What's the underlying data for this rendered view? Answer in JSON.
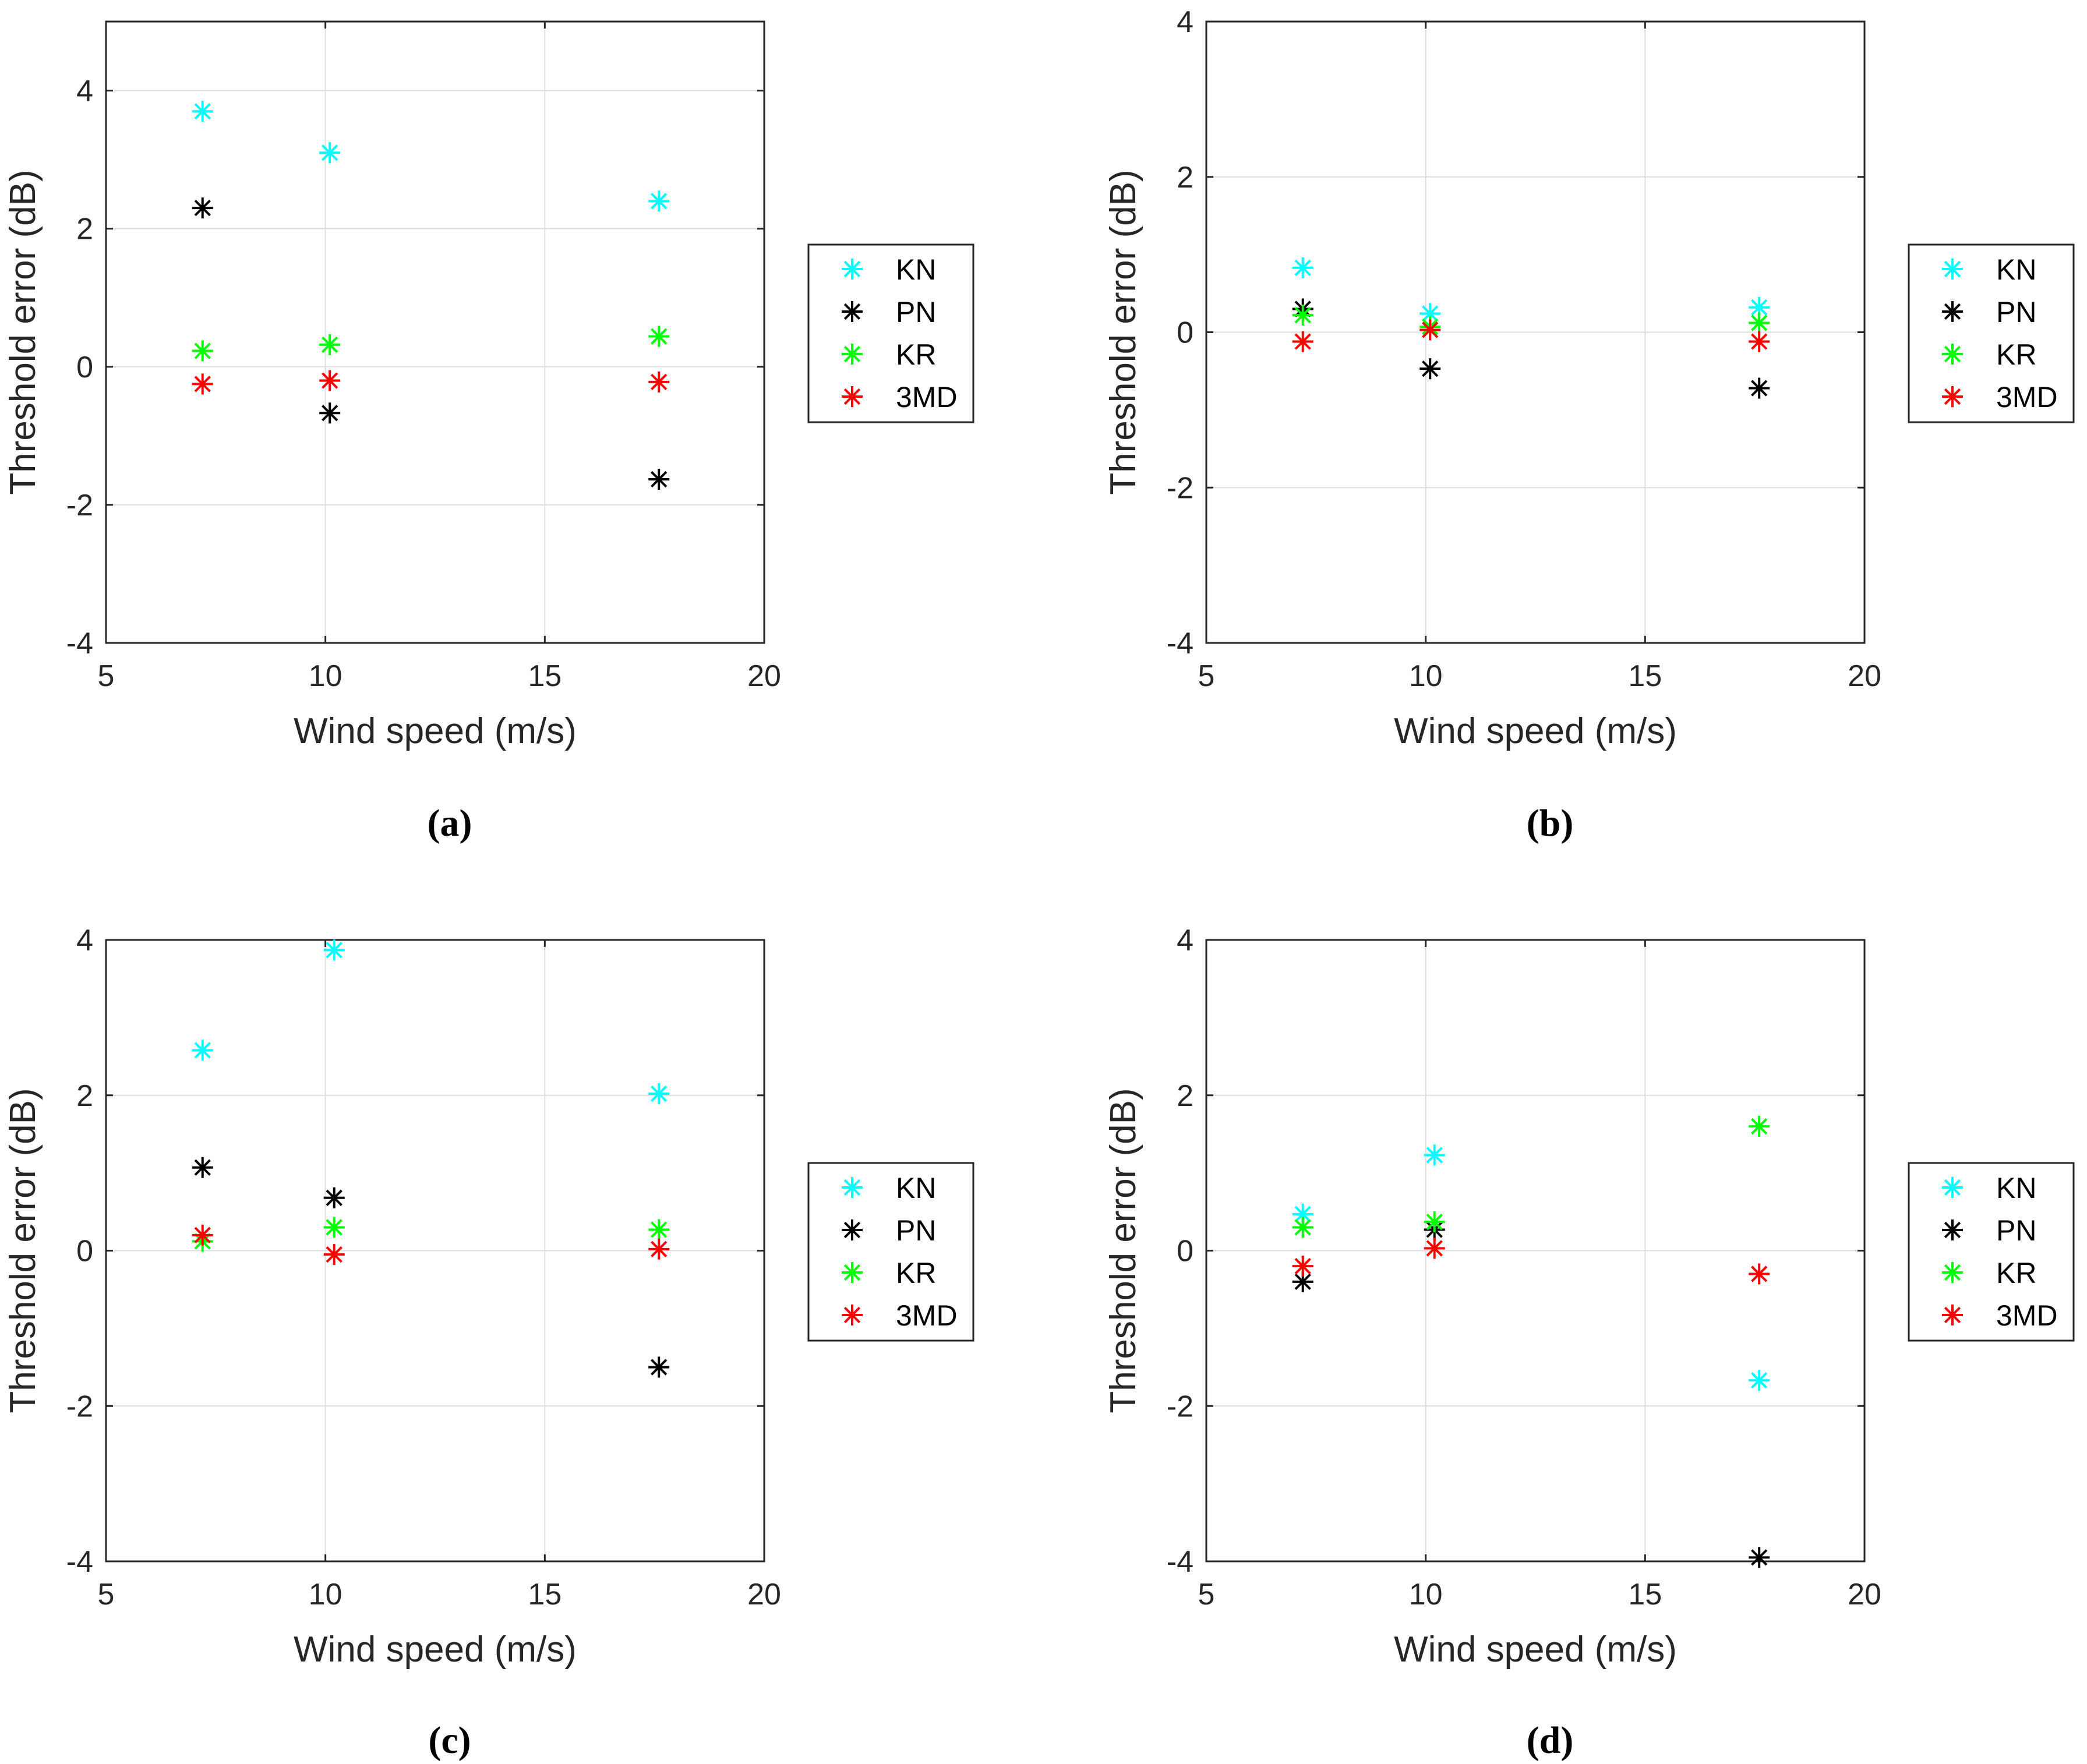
{
  "colors": {
    "KN": "#00FFFF",
    "PN": "#000000",
    "KR": "#00FF00",
    "3MD": "#FF0000"
  },
  "chart_data": [
    {
      "type": "scatter",
      "caption": "(a)",
      "xlabel": "Wind speed (m/s)",
      "ylabel": "Threshold error (dB)",
      "xlim": [
        5,
        20
      ],
      "ylim": [
        -4,
        5
      ],
      "xticks": [
        "5",
        "10",
        "15",
        "20"
      ],
      "yticks": [
        "-4",
        "-2",
        "0",
        "2",
        "4"
      ],
      "grid": true,
      "legend_position": "outside-right",
      "x": [
        7.2,
        10.1,
        17.6
      ],
      "series": [
        {
          "name": "KN",
          "values": [
            3.7,
            3.1,
            2.4
          ]
        },
        {
          "name": "PN",
          "values": [
            2.3,
            -0.67,
            -1.63
          ]
        },
        {
          "name": "KR",
          "values": [
            0.23,
            0.32,
            0.44
          ]
        },
        {
          "name": "3MD",
          "values": [
            -0.25,
            -0.2,
            -0.22
          ]
        }
      ]
    },
    {
      "type": "scatter",
      "caption": "(b)",
      "xlabel": "Wind speed (m/s)",
      "ylabel": "Threshold error (dB)",
      "xlim": [
        5,
        20
      ],
      "ylim": [
        -4,
        4
      ],
      "xticks": [
        "5",
        "10",
        "15",
        "20"
      ],
      "yticks": [
        "-4",
        "-2",
        "0",
        "2",
        "4"
      ],
      "grid": true,
      "legend_position": "outside-right",
      "x": [
        7.2,
        10.1,
        17.6
      ],
      "series": [
        {
          "name": "KN",
          "values": [
            0.83,
            0.24,
            0.32
          ]
        },
        {
          "name": "PN",
          "values": [
            0.3,
            -0.47,
            -0.72
          ]
        },
        {
          "name": "KR",
          "values": [
            0.22,
            0.07,
            0.12
          ]
        },
        {
          "name": "3MD",
          "values": [
            -0.12,
            0.03,
            -0.12
          ]
        }
      ]
    },
    {
      "type": "scatter",
      "caption": "(c)",
      "xlabel": "Wind speed (m/s)",
      "ylabel": "Threshold error (dB)",
      "xlim": [
        5,
        20
      ],
      "ylim": [
        -4,
        4
      ],
      "xticks": [
        "5",
        "10",
        "15",
        "20"
      ],
      "yticks": [
        "-4",
        "-2",
        "0",
        "2",
        "4"
      ],
      "grid": true,
      "legend_position": "outside-right",
      "x": [
        7.2,
        10.2,
        17.6
      ],
      "series": [
        {
          "name": "KN",
          "values": [
            2.58,
            3.87,
            2.02
          ]
        },
        {
          "name": "PN",
          "values": [
            1.07,
            0.68,
            -1.5
          ]
        },
        {
          "name": "KR",
          "values": [
            0.12,
            0.3,
            0.27
          ]
        },
        {
          "name": "3MD",
          "values": [
            0.2,
            -0.05,
            0.02
          ]
        }
      ]
    },
    {
      "type": "scatter",
      "caption": "(d)",
      "xlabel": "Wind speed (m/s)",
      "ylabel": "Threshold error (dB)",
      "xlim": [
        5,
        20
      ],
      "ylim": [
        -4,
        4
      ],
      "xticks": [
        "5",
        "10",
        "15",
        "20"
      ],
      "yticks": [
        "-4",
        "-2",
        "0",
        "2",
        "4"
      ],
      "grid": true,
      "legend_position": "outside-right",
      "x": [
        7.2,
        10.2,
        17.6
      ],
      "series": [
        {
          "name": "KN",
          "values": [
            0.47,
            1.23,
            -1.67
          ]
        },
        {
          "name": "PN",
          "values": [
            -0.4,
            0.27,
            -3.95
          ]
        },
        {
          "name": "KR",
          "values": [
            0.3,
            0.37,
            1.6
          ]
        },
        {
          "name": "3MD",
          "values": [
            -0.2,
            0.03,
            -0.3
          ]
        }
      ]
    }
  ]
}
